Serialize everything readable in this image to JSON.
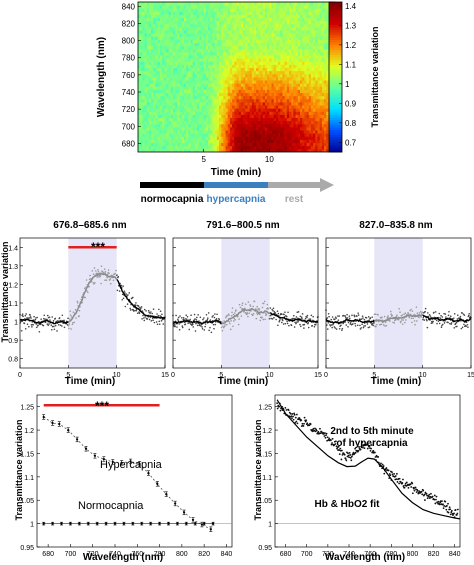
{
  "chart_data": [
    {
      "type": "heatmap",
      "xlabel": "Time (min)",
      "ylabel": "Wavelength (nm)",
      "x_ticks": [
        5,
        10
      ],
      "y_ticks": [
        680,
        700,
        720,
        740,
        760,
        780,
        800,
        820,
        840
      ],
      "xlim": [
        0,
        15
      ],
      "ylim": [
        670,
        845
      ],
      "colorbar": {
        "label": "Transmittance variation",
        "ticks": [
          "0.7",
          "0.8",
          "0.9",
          "1",
          "1.1",
          "1.2",
          "1.3",
          "1.4"
        ],
        "range": [
          0.65,
          1.42
        ],
        "colors": [
          "#00008f",
          "#0050ff",
          "#00dfff",
          "#60ff9f",
          "#dfff20",
          "#ff8000",
          "#d00000",
          "#800000"
        ]
      },
      "response_window_min": [
        5,
        10
      ],
      "peak_wavelength_nm": 690,
      "peak_value": 1.38
    },
    {
      "type": "line",
      "axis_label": "Time (min)",
      "segments": [
        {
          "label": "normocapnia",
          "start": 0,
          "end": 5,
          "color": "#000000"
        },
        {
          "label": "hypercapnia",
          "start": 5,
          "end": 10,
          "color": "#3a7fc0"
        },
        {
          "label": "rest",
          "start": 10,
          "end": 15,
          "color": "#aaaaaa"
        }
      ]
    },
    {
      "type": "scatter",
      "title": "676.8–685.6 nm",
      "ylabel": "Transmittance variation",
      "xlabel": "Time (min)",
      "x_ticks": [
        0,
        5,
        10,
        15
      ],
      "y_ticks": [
        0.8,
        0.9,
        1,
        1.1,
        1.2,
        1.3,
        1.4
      ],
      "xlim": [
        0,
        15
      ],
      "ylim": [
        0.75,
        1.45
      ],
      "shaded_window": [
        5,
        10
      ],
      "significance": {
        "label": "***",
        "start": 5,
        "end": 10,
        "y": 1.4
      },
      "baseline": 1.0,
      "peak": 1.26
    },
    {
      "type": "scatter",
      "title": "791.6–800.5 nm",
      "xlabel": "Time (min)",
      "x_ticks": [
        0,
        5,
        10,
        15
      ],
      "y_ticks": [
        0.8,
        0.9,
        1,
        1.1,
        1.2,
        1.3,
        1.4
      ],
      "xlim": [
        0,
        15
      ],
      "ylim": [
        0.75,
        1.45
      ],
      "shaded_window": [
        5,
        10
      ],
      "baseline": 1.0,
      "peak": 1.06
    },
    {
      "type": "scatter",
      "title": "827.0–835.8 nm",
      "xlabel": "Time (min)",
      "x_ticks": [
        0,
        5,
        10,
        15
      ],
      "y_ticks": [
        0.8,
        0.9,
        1,
        1.1,
        1.2,
        1.3,
        1.4
      ],
      "xlim": [
        0,
        15
      ],
      "ylim": [
        0.75,
        1.45
      ],
      "shaded_window": [
        5,
        10
      ],
      "baseline": 1.0,
      "peak": 1.03
    },
    {
      "type": "line",
      "ylabel": "Transmittance variation",
      "xlabel": "Wavelength (nm)",
      "x_ticks": [
        680,
        700,
        720,
        740,
        760,
        780,
        800,
        820,
        840
      ],
      "y_ticks": [
        "0.95",
        "1",
        "1.05",
        "1.1",
        "1.15",
        "1.2",
        "1.25"
      ],
      "xlim": [
        670,
        845
      ],
      "ylim": [
        0.95,
        1.275
      ],
      "significance": {
        "label": "***",
        "start": 676,
        "end": 780,
        "y": 1.253
      },
      "series": [
        {
          "name": "Hypercapnia",
          "x": [
            676,
            684,
            690,
            698,
            706,
            714,
            722,
            730,
            738,
            746,
            754,
            762,
            770,
            778,
            786,
            794,
            802,
            810,
            818,
            826
          ],
          "y": [
            1.228,
            1.215,
            1.213,
            1.2,
            1.18,
            1.16,
            1.145,
            1.138,
            1.132,
            1.13,
            1.133,
            1.128,
            1.108,
            1.085,
            1.063,
            1.043,
            1.024,
            1.008,
            0.998,
            0.988
          ],
          "error": 0.005
        },
        {
          "name": "Normocapnia",
          "x": [
            676,
            684,
            692,
            700,
            708,
            716,
            724,
            732,
            740,
            748,
            756,
            764,
            772,
            780,
            788,
            796,
            804,
            812,
            820,
            828
          ],
          "y": [
            1,
            1,
            1,
            1,
            1,
            1,
            1,
            1,
            1,
            1,
            1,
            1,
            1,
            1,
            1,
            1,
            1,
            1,
            1,
            1
          ],
          "error": 0.003
        }
      ]
    },
    {
      "type": "scatter",
      "ylabel": "Transmittance variation",
      "xlabel": "Wavelength (nm)",
      "x_ticks": [
        680,
        700,
        720,
        740,
        760,
        780,
        800,
        820,
        840
      ],
      "y_ticks": [
        "0.95",
        "1",
        "1.05",
        "1.1",
        "1.15",
        "1.2",
        "1.25"
      ],
      "xlim": [
        670,
        845
      ],
      "ylim": [
        0.95,
        1.275
      ],
      "annotations": [
        "2nd to 5th minute",
        "of hypercapnia",
        "Hb & HbO2 fit"
      ],
      "fit": {
        "x": [
          672,
          680,
          690,
          700,
          710,
          720,
          730,
          738,
          746,
          752,
          758,
          764,
          772,
          780,
          790,
          800,
          810,
          820,
          830,
          840,
          845
        ],
        "y": [
          1.265,
          1.235,
          1.21,
          1.185,
          1.165,
          1.145,
          1.13,
          1.122,
          1.123,
          1.132,
          1.14,
          1.138,
          1.12,
          1.095,
          1.065,
          1.045,
          1.03,
          1.022,
          1.017,
          1.012,
          1.01
        ]
      }
    }
  ]
}
